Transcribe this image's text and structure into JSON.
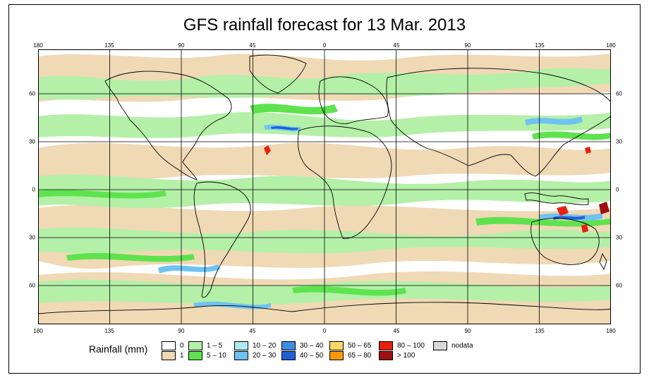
{
  "title": "GFS rainfall forecast for 13 Mar. 2013",
  "lon_labels": [
    "180",
    "135",
    "90",
    "45",
    "0",
    "45",
    "90",
    "135",
    "180"
  ],
  "lat_labels": [
    "60",
    "30",
    "0",
    "30",
    "60"
  ],
  "legend": {
    "title": "Rainfall (mm)",
    "items": [
      {
        "label": "0",
        "color": "#ffffff"
      },
      {
        "label": "1",
        "color": "#f0d9b5"
      },
      {
        "label": "1 – 5",
        "color": "#b4f0a8"
      },
      {
        "label": "5 – 10",
        "color": "#5ee34f"
      },
      {
        "label": "10 – 20",
        "color": "#b0e8f4"
      },
      {
        "label": "20 – 30",
        "color": "#6ec3f2"
      },
      {
        "label": "30 – 40",
        "color": "#3c8ce6"
      },
      {
        "label": "40 – 50",
        "color": "#1f5fd8"
      },
      {
        "label": "50 – 65",
        "color": "#ffd966"
      },
      {
        "label": "65 – 80",
        "color": "#ff9a00"
      },
      {
        "label": "80 – 100",
        "color": "#e8210f"
      },
      {
        "label": "> 100",
        "color": "#a01010"
      },
      {
        "label": "nodata",
        "color": "#d9d9d9"
      }
    ]
  }
}
